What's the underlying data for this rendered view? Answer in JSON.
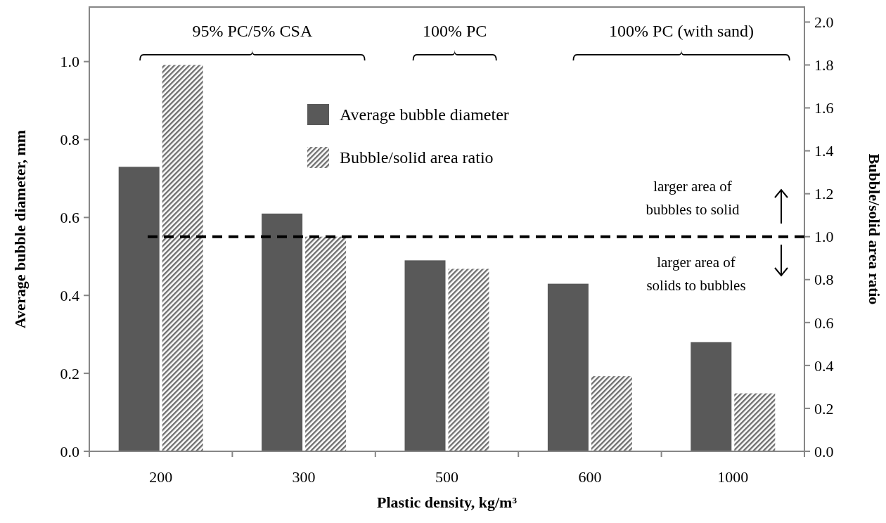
{
  "chart_data": {
    "type": "bar",
    "xlabel": "Plastic density, kg/m³",
    "ylabel": "Average bubble diameter, mm",
    "y2label": "Bubble/solid area ratio",
    "categories": [
      "200",
      "300",
      "500",
      "600",
      "1000"
    ],
    "series": [
      {
        "name": "Average bubble diameter",
        "color": "#595959",
        "values": [
          0.73,
          0.61,
          0.49,
          0.43,
          0.28
        ]
      },
      {
        "name": "Bubble/solid area ratio",
        "color": "#6e6e6e",
        "axis": "y2",
        "values": [
          1.8,
          1.0,
          0.85,
          0.35,
          0.27
        ]
      }
    ],
    "ylim": [
      0,
      1.14
    ],
    "yticks": [
      {
        "value": 0,
        "label": "0.0"
      },
      0.2,
      0.4,
      0.6,
      0.8,
      {
        "value": 1,
        "label": "1.0"
      }
    ],
    "y2lim": [
      0,
      2.07
    ],
    "y2ticks": [
      {
        "value": 0,
        "label": "0.0"
      },
      0.2,
      0.4,
      0.6,
      0.8,
      {
        "value": 1,
        "label": "1.0"
      },
      1.2,
      1.4,
      1.6,
      1.8,
      {
        "value": 2,
        "label": "2.0"
      }
    ],
    "ref_lines": [
      {
        "axis": "y2",
        "value": 1.0,
        "color": "#000000",
        "line_style": "dashed"
      }
    ],
    "annotations": [
      "95% PC/5% CSA",
      "100% PC",
      "100% PC (with sand)",
      "larger area of\nbubbles to solid",
      "larger area of\nsolids to bubbles"
    ],
    "legend": "top",
    "grid": false
  }
}
